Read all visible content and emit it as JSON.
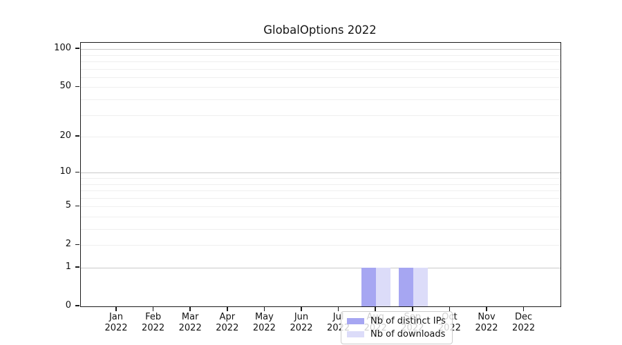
{
  "chart_data": {
    "type": "bar",
    "title": "GlobalOptions 2022",
    "categories": [
      "Jan 2022",
      "Feb 2022",
      "Mar 2022",
      "Apr 2022",
      "May 2022",
      "Jun 2022",
      "Jul 2022",
      "Aug 2022",
      "Sep 2022",
      "Oct 2022",
      "Nov 2022",
      "Dec 2022"
    ],
    "x_months": [
      "Jan",
      "Feb",
      "Mar",
      "Apr",
      "May",
      "Jun",
      "Jul",
      "Aug",
      "Sep",
      "Oct",
      "Nov",
      "Dec"
    ],
    "x_year": "2022",
    "series": [
      {
        "name": "Nb of distinct IPs",
        "color": "#a6a6f2",
        "values": [
          0,
          0,
          0,
          0,
          0,
          0,
          0,
          1,
          1,
          0,
          0,
          0
        ]
      },
      {
        "name": "Nb of downloads",
        "color": "#dcdcf9",
        "values": [
          0,
          0,
          0,
          0,
          0,
          0,
          0,
          1,
          1,
          0,
          0,
          0
        ]
      }
    ],
    "yscale": "log1p",
    "ylim": [
      0,
      115
    ],
    "ytick_labels": [
      0,
      1,
      2,
      5,
      10,
      20,
      50,
      100
    ],
    "major_gridlines": [
      1,
      10,
      100
    ],
    "minor_gridlines": [
      2,
      3,
      4,
      5,
      6,
      7,
      8,
      9,
      20,
      30,
      40,
      50,
      60,
      70,
      80,
      90
    ],
    "grid": "horizontal",
    "legend_position": "inside-bottom-center",
    "colors": {
      "axis": "#1a1a1a",
      "major_grid": "#c9c9c9",
      "minor_grid": "#efefef",
      "background": "#ffffff"
    }
  }
}
